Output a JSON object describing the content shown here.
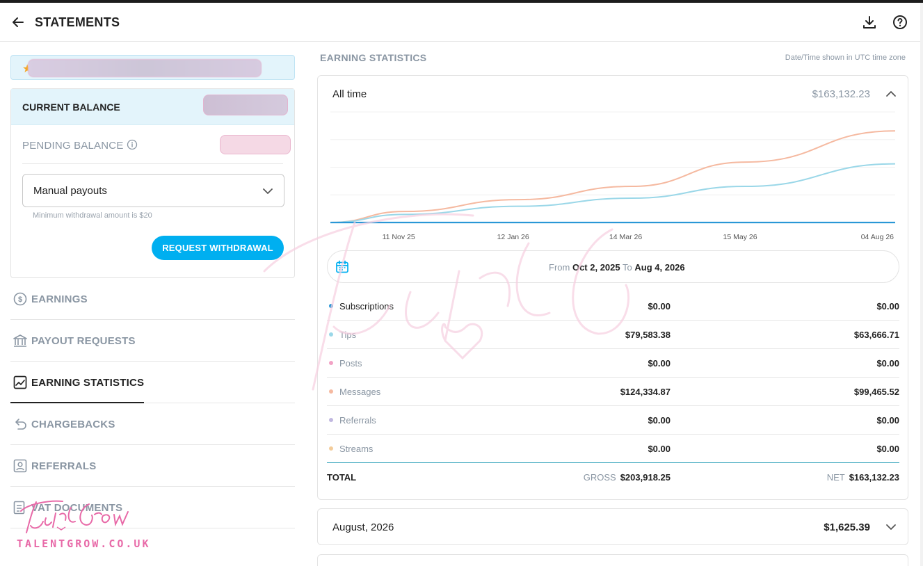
{
  "header": {
    "title": "STATEMENTS",
    "back_icon": "arrow-left-icon",
    "download_icon": "download-icon",
    "help_icon": "help-circle-icon"
  },
  "balance": {
    "current_label": "CURRENT BALANCE",
    "pending_label": "PENDING BALANCE",
    "payout_mode": "Manual payouts",
    "min_withdrawal_hint": "Minimum withdrawal amount is $20",
    "request_button": "REQUEST WITHDRAWAL"
  },
  "nav": {
    "items": [
      {
        "label": "EARNINGS",
        "icon": "dollar-circle-icon"
      },
      {
        "label": "PAYOUT REQUESTS",
        "icon": "bank-icon"
      },
      {
        "label": "EARNING STATISTICS",
        "icon": "chart-line-icon",
        "active": true
      },
      {
        "label": "CHARGEBACKS",
        "icon": "undo-icon"
      },
      {
        "label": "REFERRALS",
        "icon": "user-card-icon"
      },
      {
        "label": "VAT DOCUMENTS",
        "icon": "document-icon"
      }
    ]
  },
  "watermark": {
    "site": "TALENTGROW.CO.UK"
  },
  "stats": {
    "section_title": "EARNING STATISTICS",
    "timezone_note": "Date/Time shown in UTC time zone",
    "period_label": "All time",
    "period_total": "$163,132.23",
    "date_range": {
      "from_label": "From",
      "from": "Oct 2, 2025",
      "to_label": "To",
      "to": "Aug 4, 2026"
    },
    "rows": [
      {
        "label": "Subscriptions",
        "gross": "$0.00",
        "net": "$0.00",
        "color": "#2a97d6"
      },
      {
        "label": "Tips",
        "gross": "$79,583.38",
        "net": "$63,666.71",
        "color": "#9ad7e8"
      },
      {
        "label": "Posts",
        "gross": "$0.00",
        "net": "$0.00",
        "color": "#f2a2c5"
      },
      {
        "label": "Messages",
        "gross": "$124,334.87",
        "net": "$99,465.52",
        "color": "#f5b9a0"
      },
      {
        "label": "Referrals",
        "gross": "$0.00",
        "net": "$0.00",
        "color": "#c1b8e0"
      },
      {
        "label": "Streams",
        "gross": "$0.00",
        "net": "$0.00",
        "color": "#f3cc9a"
      }
    ],
    "total": {
      "label": "TOTAL",
      "gross_label": "GROSS",
      "gross": "$203,918.25",
      "net_label": "NET",
      "net": "$163,132.23"
    },
    "month": {
      "label": "August, 2026",
      "total": "$1,625.39"
    }
  },
  "chart_data": {
    "type": "line",
    "x": [
      "2025-10-02",
      "2025-11-11",
      "2026-01-12",
      "2026-03-14",
      "2026-05-15",
      "2026-08-04"
    ],
    "tick_labels": [
      "11 Nov 25",
      "12 Jan 26",
      "14 Mar 26",
      "15 May 26",
      "04 Aug 26"
    ],
    "series": [
      {
        "name": "Messages",
        "color": "#f5b9a0",
        "values": [
          0,
          15000,
          31000,
          49000,
          82000,
          124334.87
        ]
      },
      {
        "name": "Tips",
        "color": "#9ad7e8",
        "values": [
          0,
          11000,
          22000,
          33000,
          49000,
          79583.38
        ]
      },
      {
        "name": "Subscriptions",
        "color": "#2a97d6",
        "values": [
          0,
          0,
          0,
          0,
          0,
          0
        ]
      }
    ],
    "ylim": [
      0,
      150000
    ],
    "grid": true
  }
}
